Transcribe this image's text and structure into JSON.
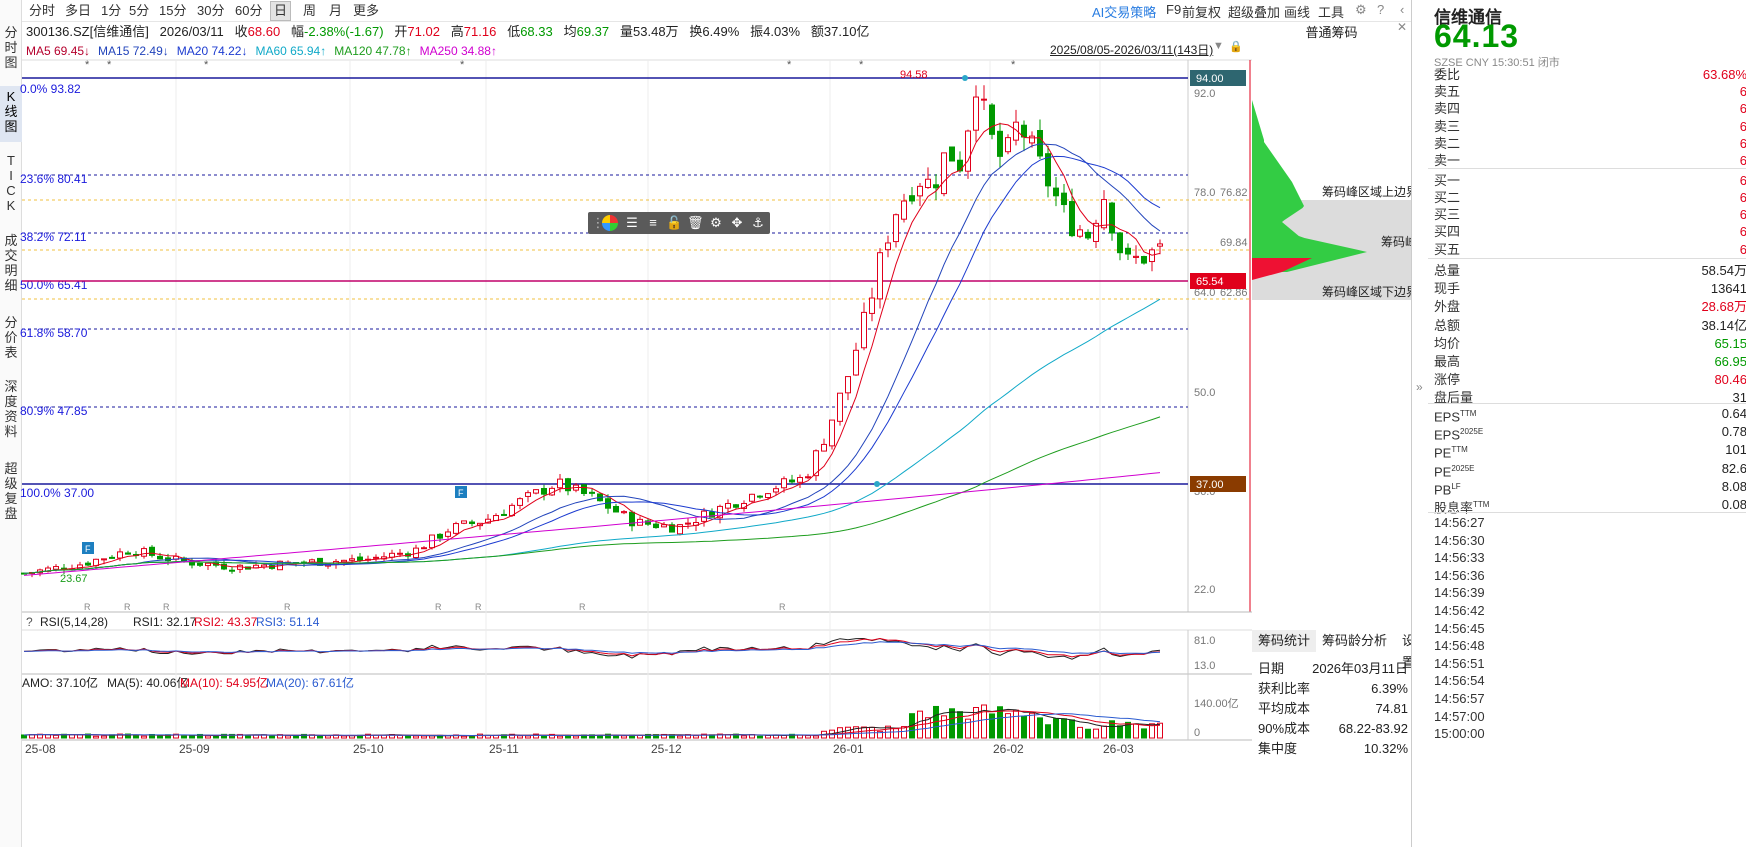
{
  "left_nav": [
    "分时图",
    "K线图",
    "TICK",
    "成交明细",
    "分价表",
    "深度资料",
    "超级复盘"
  ],
  "periods": [
    "分时",
    "多日",
    "1分",
    "5分",
    "15分",
    "30分",
    "60分",
    "日",
    "周",
    "月",
    "更多"
  ],
  "active_period": "日",
  "tools": [
    "AI交易策略",
    "F9",
    "前复权",
    "超级叠加",
    "画线",
    "工具"
  ],
  "info": {
    "code": "300136.SZ[信维通信]",
    "date": "2026/03/11",
    "close_label": "收",
    "close": "68.60",
    "change_label": "幅",
    "change": "-2.38%(-1.67)",
    "open_label": "开",
    "open": "71.02",
    "high_label": "高",
    "high": "71.16",
    "low_label": "低",
    "low": "68.33",
    "avg_label": "均",
    "avg": "69.37",
    "vol_label": "量",
    "vol": "53.48万",
    "turn_label": "换",
    "turn": "6.49%",
    "amp_label": "振",
    "amp": "4.03%",
    "amt_label": "额",
    "amt": "37.10亿"
  },
  "ma_legend": [
    {
      "name": "MA5",
      "value": "69.45↓",
      "color": "#b5002d"
    },
    {
      "name": "MA15",
      "value": "72.49↓",
      "color": "#2244bb"
    },
    {
      "name": "MA20",
      "value": "74.22↓",
      "color": "#1c3bd0"
    },
    {
      "name": "MA60",
      "value": "65.94↑",
      "color": "#10a9c8"
    },
    {
      "name": "MA120",
      "value": "47.78↑",
      "color": "#1e9d1e"
    },
    {
      "name": "MA250",
      "value": "34.88↑",
      "color": "#d000d0"
    }
  ],
  "range_label": "2025/08/05-2026/03/11(143日)",
  "fib_levels": [
    {
      "pct": "0.0%",
      "price": "93.82"
    },
    {
      "pct": "23.6%",
      "price": "80.41"
    },
    {
      "pct": "38.2%",
      "price": "72.11"
    },
    {
      "pct": "50.0%",
      "price": "65.41"
    },
    {
      "pct": "61.8%",
      "price": "58.70"
    },
    {
      "pct": "80.9%",
      "price": "47.85"
    },
    {
      "pct": "100.0%",
      "price": "37.00"
    }
  ],
  "price_axis": [
    "92.0",
    "78.0",
    "76.82",
    "69.84",
    "64.0",
    "62.86",
    "50.0",
    "36.0",
    "22.0"
  ],
  "price_tags": {
    "top": "94.00",
    "mid": "65.54",
    "bottom": "37.00"
  },
  "chart_labels": {
    "high": "94.58",
    "low": "23.67"
  },
  "x_labels": [
    "25-08",
    "25-09",
    "25-10",
    "25-11",
    "25-12",
    "26-01",
    "26-02",
    "26-03"
  ],
  "rsi": {
    "label": "RSI(5,14,28)",
    "rsi1": "RSI1: 32.17",
    "rsi2": "RSI2: 43.37",
    "rsi3": "RSI3: 51.14",
    "ax_top": "81.0",
    "ax_bot": "13.0"
  },
  "amo": {
    "label": "AMO: 37.10亿",
    "ma5": "MA(5): 40.06亿",
    "ma10": "MA(10): 54.95亿",
    "ma20": "MA(20): 67.61亿",
    "ax_top": "140.00亿",
    "ax_bot": "0"
  },
  "chips": {
    "title": "普通筹码",
    "upper": "筹码峰区域上边界",
    "peak": "筹码峰",
    "lower": "筹码峰区域下边界"
  },
  "stats": {
    "tabs": [
      "筹码统计",
      "筹码龄分析",
      "设置"
    ],
    "rows": [
      {
        "label": "日期",
        "value": "2026年03月11日"
      },
      {
        "label": "获利比率",
        "value": "6.39%"
      },
      {
        "label": "平均成本",
        "value": "74.81"
      },
      {
        "label": "90%成本",
        "value": "68.22-83.92"
      },
      {
        "label": "集中度",
        "value": "10.32%"
      }
    ]
  },
  "quote": {
    "name": "信维通信",
    "price": "64.13",
    "exchange": "SZSE",
    "currency": "CNY",
    "time": "15:30:51",
    "status": "闭市",
    "ratio_label": "委比",
    "ratio": "63.68%",
    "book": [
      {
        "label": "卖五",
        "value": "6"
      },
      {
        "label": "卖四",
        "value": "6"
      },
      {
        "label": "卖三",
        "value": "6"
      },
      {
        "label": "卖二",
        "value": "6"
      },
      {
        "label": "卖一",
        "value": "6"
      },
      {
        "label": "买一",
        "value": "6"
      },
      {
        "label": "买二",
        "value": "6"
      },
      {
        "label": "买三",
        "value": "6"
      },
      {
        "label": "买四",
        "value": "6"
      },
      {
        "label": "买五",
        "value": "6"
      }
    ],
    "stats": [
      {
        "label": "总量",
        "value": "58.54万",
        "color": "#222"
      },
      {
        "label": "现手",
        "value": "13641",
        "color": "#222"
      },
      {
        "label": "外盘",
        "value": "28.68万",
        "color": "#e0001b"
      },
      {
        "label": "总额",
        "value": "38.14亿",
        "color": "#222"
      },
      {
        "label": "均价",
        "value": "65.15",
        "color": "#009900"
      },
      {
        "label": "最高",
        "value": "66.95",
        "color": "#009900"
      },
      {
        "label": "涨停",
        "value": "80.46",
        "color": "#e0001b"
      },
      {
        "label": "盘后量",
        "value": "31",
        "color": "#222"
      }
    ],
    "fin": [
      {
        "label": "EPS",
        "sup": "TTM",
        "value": "0.64"
      },
      {
        "label": "EPS",
        "sup": "2025E",
        "value": "0.78"
      },
      {
        "label": "PE",
        "sup": "TTM",
        "value": "101"
      },
      {
        "label": "PE",
        "sup": "2025E",
        "value": "82.6"
      },
      {
        "label": "PB",
        "sup": "LF",
        "value": "8.08"
      },
      {
        "label": "股息率",
        "sup": "TTM",
        "value": "0.08"
      }
    ],
    "ticks": [
      "14:56:27",
      "14:56:30",
      "14:56:33",
      "14:56:36",
      "14:56:39",
      "14:56:42",
      "14:56:45",
      "14:56:48",
      "14:56:51",
      "14:56:54",
      "14:56:57",
      "14:57:00",
      "15:00:00"
    ]
  },
  "colors": {
    "up": "#e0001b",
    "down": "#009900",
    "fib": "#1a1a9c",
    "accent": "#2a7de1"
  }
}
